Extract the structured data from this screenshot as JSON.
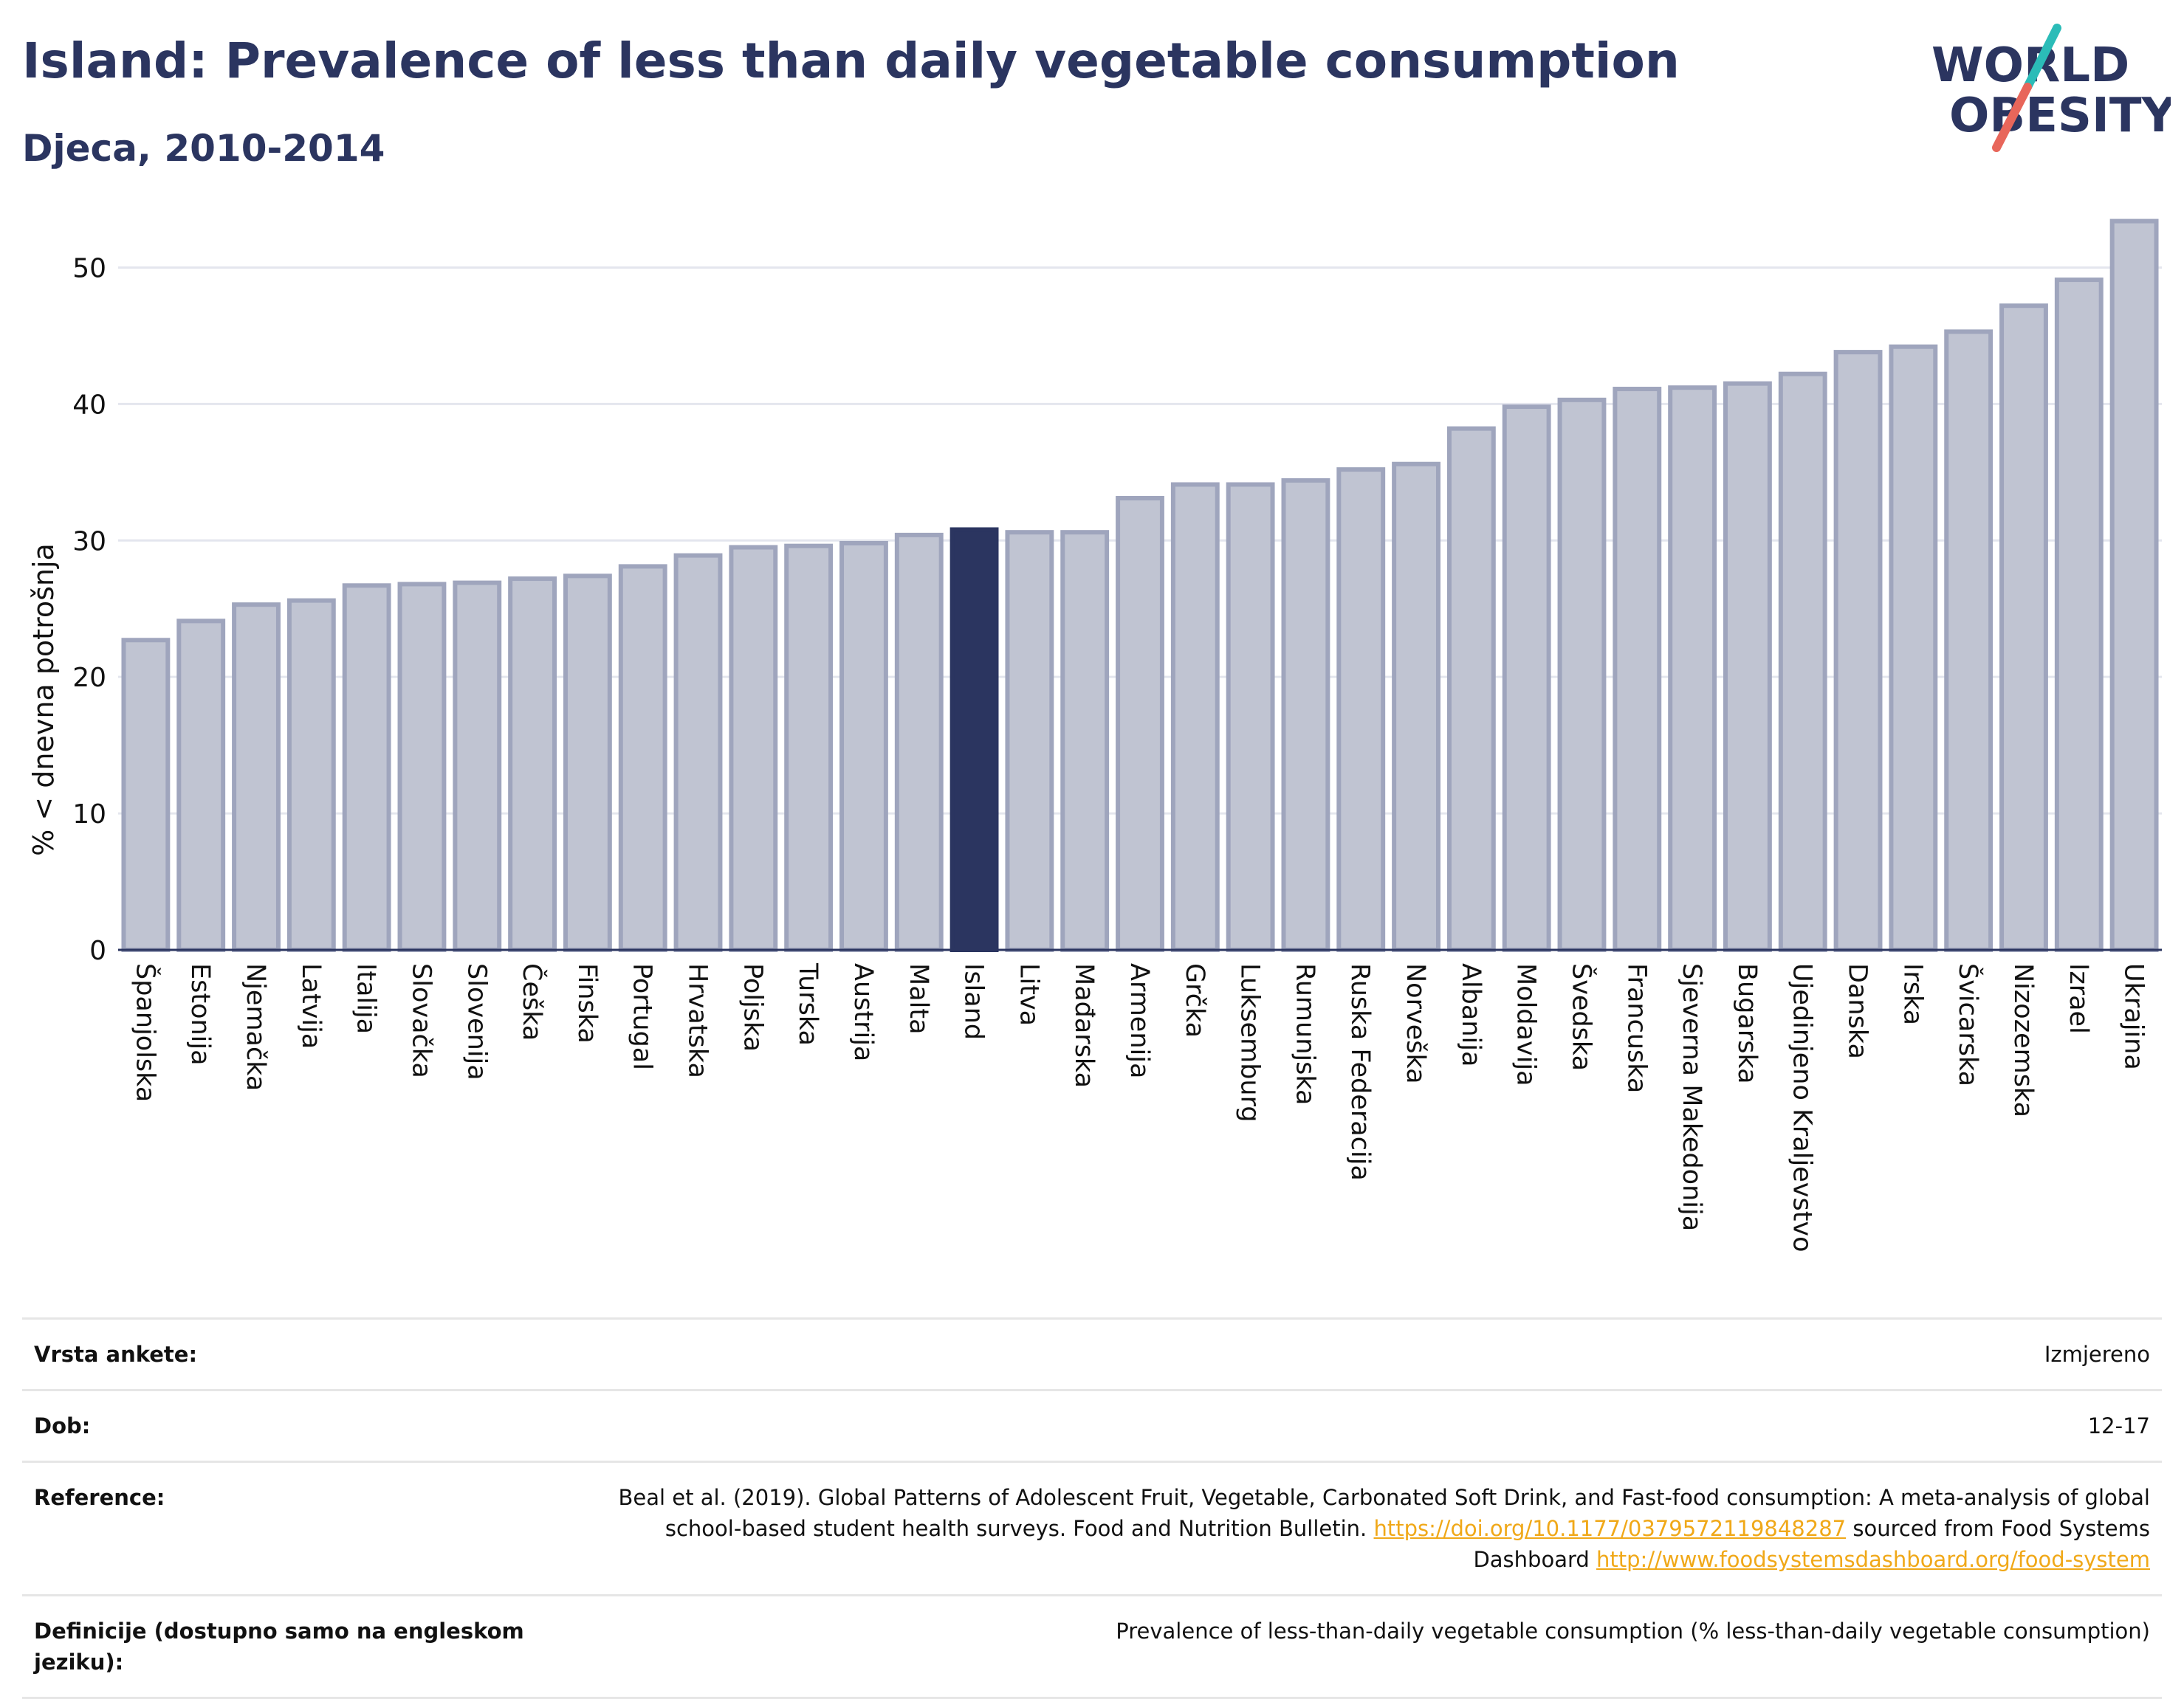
{
  "header": {
    "title": "Island: Prevalence of less than daily vegetable consumption",
    "subtitle": "Djeca, 2010-2014"
  },
  "logo": {
    "line1": "WORLD",
    "line2": "OBESITY",
    "colors": {
      "text": "#2b3560",
      "teal": "#2bbcb8",
      "coral": "#e8665a"
    }
  },
  "chart_data": {
    "type": "bar",
    "ylabel": "% < dnevna potrošnja",
    "ylim": [
      0,
      55
    ],
    "yticks": [
      0,
      10,
      20,
      30,
      40,
      50
    ],
    "grid": true,
    "highlight": "Island",
    "colors": {
      "bar": "#c0c4d2",
      "bar_border": "#9fa5bd",
      "highlight": "#2b3560"
    },
    "categories": [
      "Španjolska",
      "Estonija",
      "Njemačka",
      "Latvija",
      "Italija",
      "Slovačka",
      "Slovenija",
      "Češka",
      "Finska",
      "Portugal",
      "Hrvatska",
      "Poljska",
      "Turska",
      "Austrija",
      "Malta",
      "Island",
      "Litva",
      "Mađarska",
      "Armenija",
      "Grčka",
      "Luksemburg",
      "Rumunjska",
      "Ruska Federacija",
      "Norveška",
      "Albanija",
      "Moldavija",
      "Švedska",
      "Francuska",
      "Sjeverna Makedonija",
      "Bugarska",
      "Ujedinjeno Kraljevstvo",
      "Danska",
      "Irska",
      "Švicarska",
      "Nizozemska",
      "Izrael",
      "Ukrajina"
    ],
    "values": [
      22.7,
      24.1,
      25.3,
      25.6,
      26.7,
      26.8,
      26.9,
      27.2,
      27.4,
      28.1,
      28.9,
      29.5,
      29.6,
      29.8,
      30.4,
      30.8,
      30.6,
      30.6,
      33.1,
      34.1,
      34.1,
      34.4,
      35.2,
      35.6,
      38.2,
      39.8,
      40.3,
      41.1,
      41.2,
      41.5,
      42.2,
      43.8,
      44.2,
      45.3,
      47.2,
      49.1,
      53.4
    ]
  },
  "info": {
    "survey_label": "Vrsta ankete:",
    "survey_value": "Izmjereno",
    "age_label": "Dob:",
    "age_value": "12-17",
    "reference_label": "Reference:",
    "reference_text1": "Beal et al. (2019). Global Patterns of Adolescent Fruit, Vegetable, Carbonated Soft Drink, and Fast-food consumption: A meta-analysis of global school-based student health surveys. Food and Nutrition Bulletin.",
    "reference_link1": "https://doi.org/10.1177/0379572119848287",
    "reference_text2": "sourced from Food Systems Dashboard",
    "reference_link2": "http://www.foodsystemsdashboard.org/food-system",
    "definition_label": "Definicije (dostupno samo na engleskom jeziku):",
    "definition_value": "Prevalence of less-than-daily vegetable consumption (% less-than-daily vegetable consumption)"
  }
}
